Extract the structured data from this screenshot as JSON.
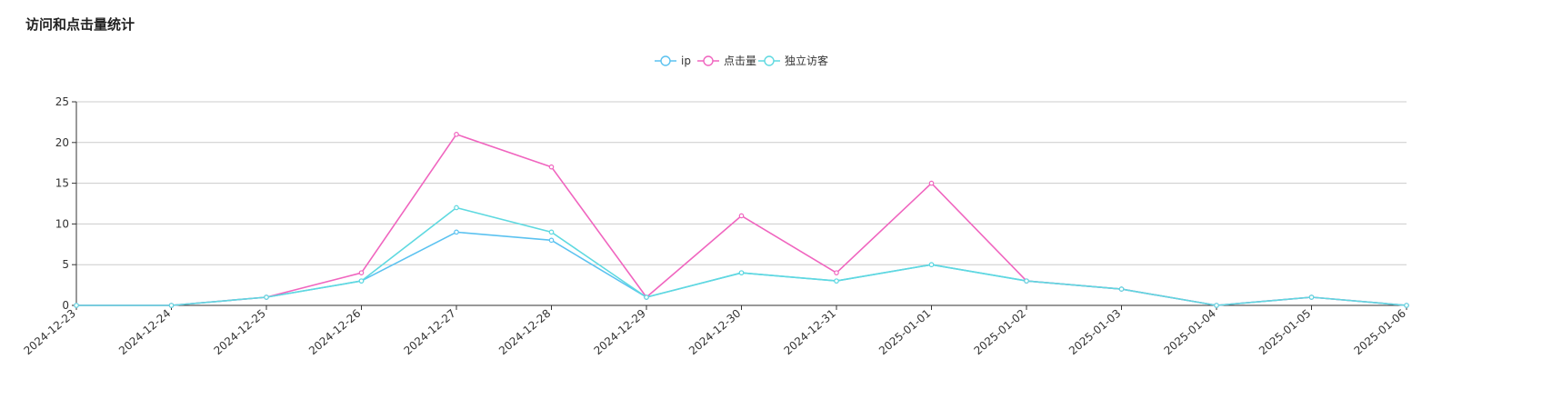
{
  "panel": {
    "title": "访问和点击量统计"
  },
  "chart_data": {
    "type": "line",
    "title": "访问和点击量统计",
    "xlabel": "",
    "ylabel": "",
    "ylim": [
      0,
      25
    ],
    "yticks": [
      0,
      5,
      10,
      15,
      20,
      25
    ],
    "grid": true,
    "legend_position": "top-center",
    "categories": [
      "2024-12-23",
      "2024-12-24",
      "2024-12-25",
      "2024-12-26",
      "2024-12-27",
      "2024-12-28",
      "2024-12-29",
      "2024-12-30",
      "2024-12-31",
      "2025-01-01",
      "2025-01-02",
      "2025-01-03",
      "2025-01-04",
      "2025-01-05",
      "2025-01-06"
    ],
    "series": [
      {
        "name": "ip",
        "color": "#5bc2f0",
        "values": [
          0,
          0,
          1,
          3,
          9,
          8,
          1,
          4,
          3,
          5,
          3,
          2,
          0,
          1,
          0
        ]
      },
      {
        "name": "点击量",
        "color": "#f065bf",
        "values": [
          0,
          0,
          1,
          4,
          21,
          17,
          1,
          11,
          4,
          15,
          3,
          2,
          0,
          1,
          0
        ]
      },
      {
        "name": "独立访客",
        "color": "#5fd9e0",
        "values": [
          0,
          0,
          1,
          3,
          12,
          9,
          1,
          4,
          3,
          5,
          3,
          2,
          0,
          1,
          0
        ]
      }
    ]
  }
}
